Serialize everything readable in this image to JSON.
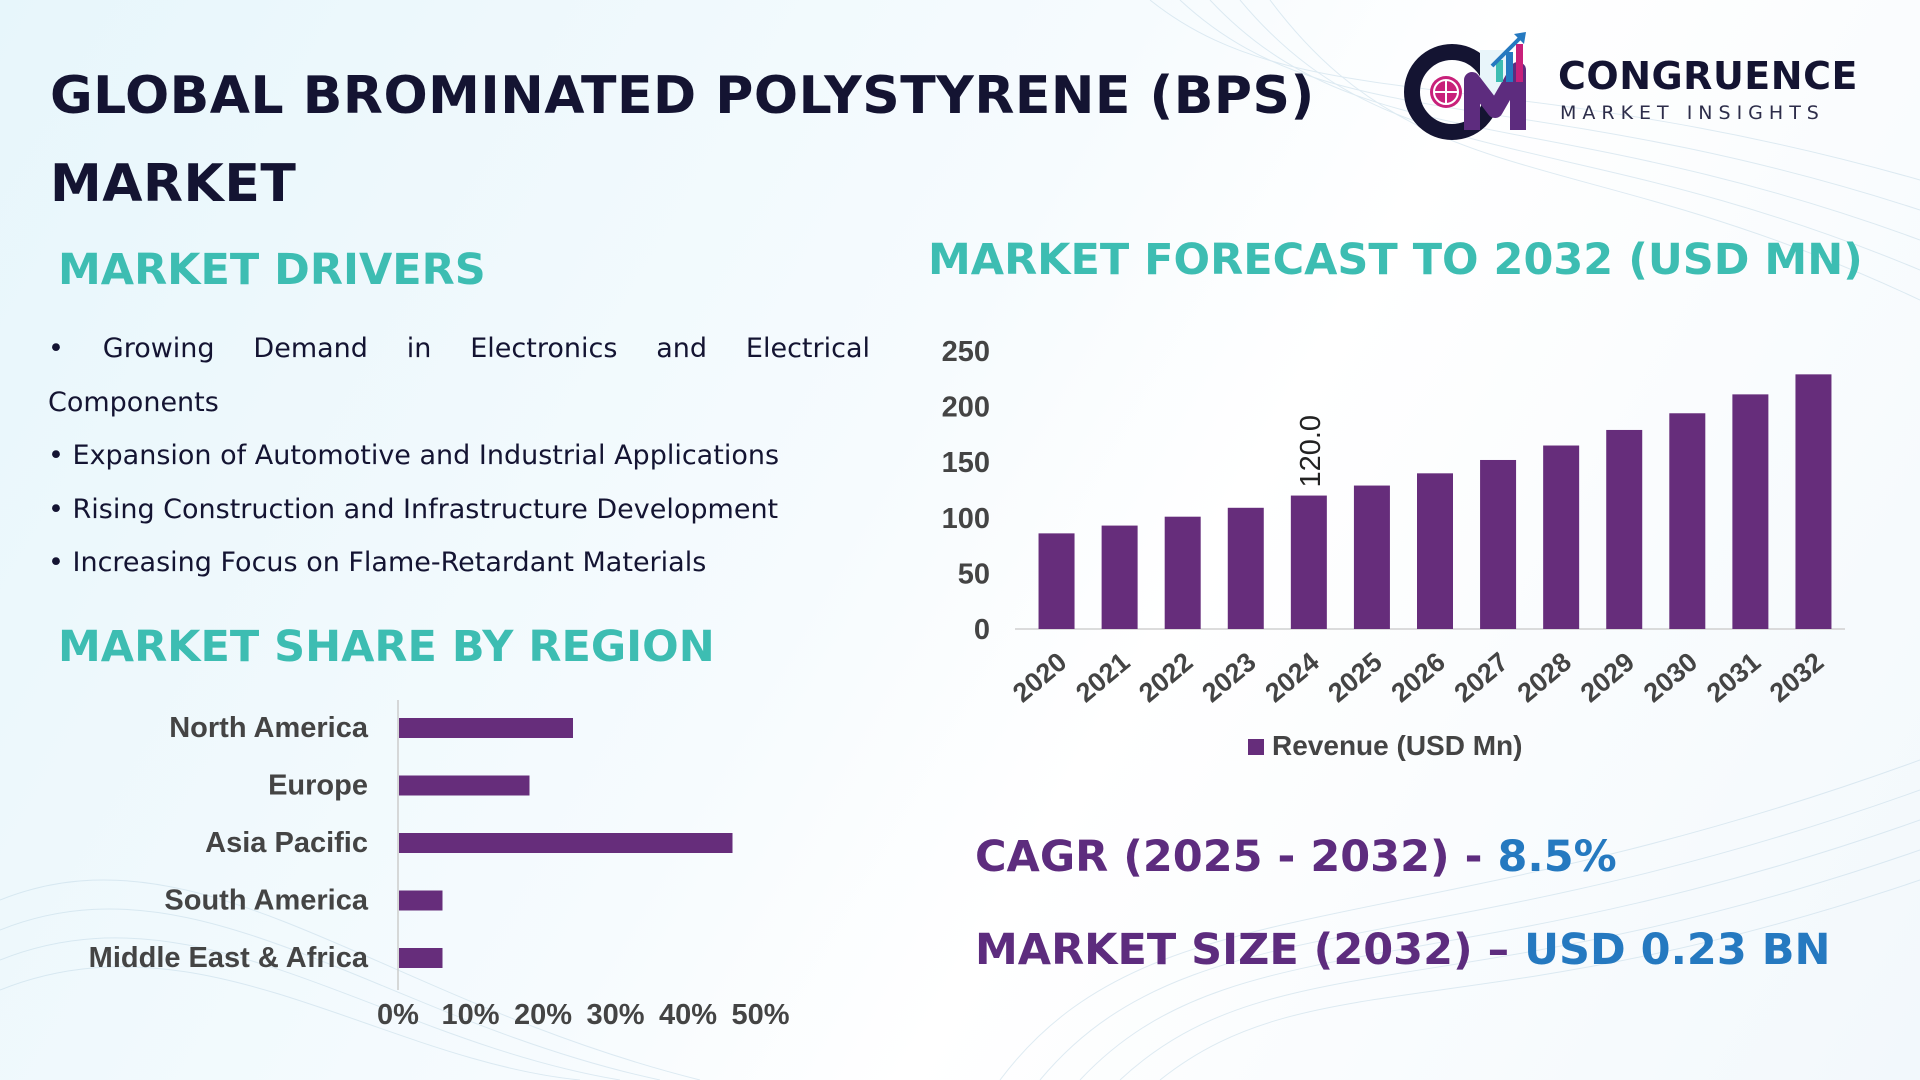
{
  "title": "GLOBAL BROMINATED POLYSTYRENE (BPS) MARKET",
  "logo": {
    "name": "CONGRUENCE",
    "tagline": "MARKET INSIGHTS",
    "mark_letters": "CM"
  },
  "colors": {
    "bar": "#662d7b",
    "heading_teal": "#3dbdb2",
    "kpi_label": "#5d2c7e",
    "kpi_value": "#2579c0",
    "title": "#141432",
    "axis_text": "#444444"
  },
  "drivers": {
    "heading": "MARKET DRIVERS",
    "items": [
      "• Growing Demand in Electronics and Electrical",
      "Components",
      "• Expansion of Automotive and Industrial Applications",
      "• Rising Construction and Infrastructure Development",
      "• Increasing Focus on Flame-Retardant Materials"
    ]
  },
  "region_section": {
    "heading": "MARKET SHARE BY REGION"
  },
  "forecast_section": {
    "heading": "MARKET FORECAST TO 2032 (USD MN)"
  },
  "kpis": {
    "cagr_label": "CAGR (2025 - 2032) -",
    "cagr_value": "8.5%",
    "size_label": "MARKET SIZE (2032) –",
    "size_value": "USD 0.23 BN"
  },
  "chart_data": [
    {
      "type": "bar",
      "orientation": "horizontal",
      "categories": [
        "North America",
        "Europe",
        "Asia Pacific",
        "South America",
        "Middle East & Africa"
      ],
      "values": [
        24,
        18,
        46,
        6,
        6
      ],
      "unit": "%",
      "xlim": [
        0,
        50
      ],
      "xticks": [
        "0%",
        "10%",
        "20%",
        "30%",
        "40%",
        "50%"
      ],
      "grid": false,
      "legend": "none"
    },
    {
      "type": "bar",
      "orientation": "vertical",
      "categories": [
        "2020",
        "2021",
        "2022",
        "2023",
        "2024",
        "2025",
        "2026",
        "2027",
        "2028",
        "2029",
        "2030",
        "2031",
        "2032"
      ],
      "series": [
        {
          "name": "Revenue (USD Mn)",
          "values": [
            86,
            93,
            101,
            109,
            120,
            129,
            140,
            152,
            165,
            179,
            194,
            211,
            229
          ]
        }
      ],
      "data_labels": [
        {
          "index": 4,
          "text": "120.0"
        }
      ],
      "ylim": [
        0,
        250
      ],
      "yticks": [
        "0",
        "50",
        "100",
        "150",
        "200",
        "250"
      ],
      "grid": false,
      "legend": "bottom"
    }
  ]
}
